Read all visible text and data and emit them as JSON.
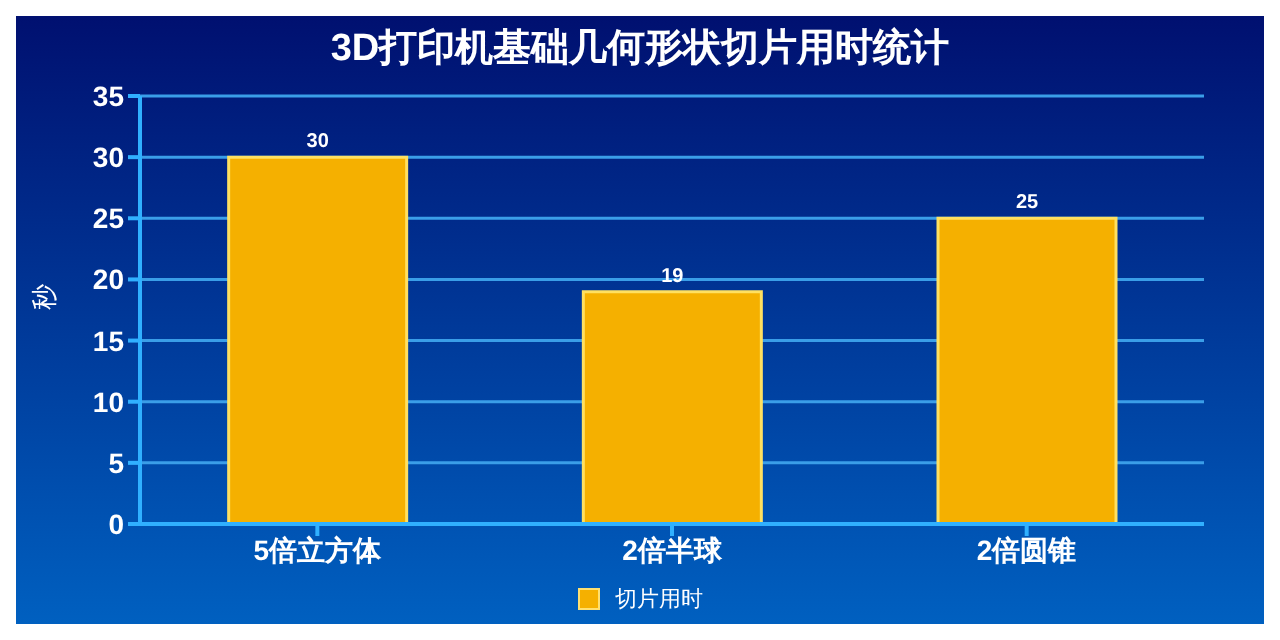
{
  "chart_data": {
    "type": "bar",
    "title": "3D打印机基础几何形状切片用时统计",
    "ylabel": "秒",
    "categories": [
      "5倍立方体",
      "2倍半球",
      "2倍圆锥"
    ],
    "series": [
      {
        "name": "切片用时",
        "color": "#f5b000",
        "values": [
          30,
          19,
          25
        ]
      }
    ],
    "ylim": [
      0,
      35
    ],
    "yticks": [
      0,
      5,
      10,
      15,
      20,
      25,
      30,
      35
    ],
    "grid": "y",
    "data_labels": true,
    "legend": "bottom"
  }
}
